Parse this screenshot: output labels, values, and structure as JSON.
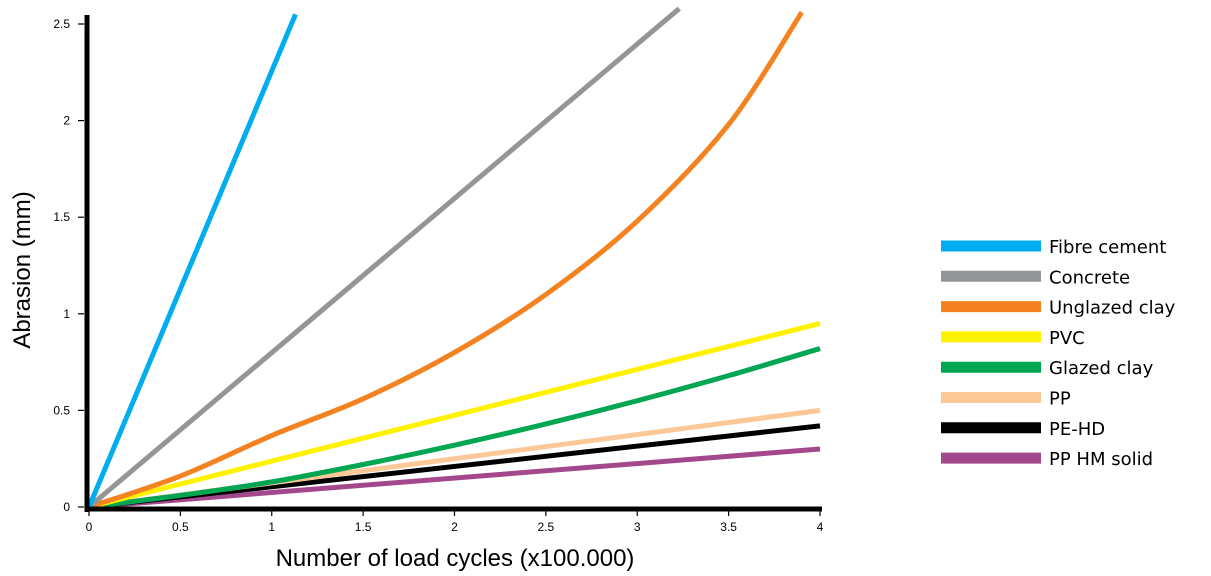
{
  "chart_data": {
    "type": "line",
    "title": "",
    "xlabel": "Number of load cycles (x100.000)",
    "ylabel": "Abrasion (mm)",
    "xlim": [
      0,
      4
    ],
    "ylim": [
      0,
      2.5
    ],
    "x_ticks": [
      "0",
      "0.5",
      "1",
      "1.5",
      "2",
      "2.5",
      "3",
      "3.5",
      "4"
    ],
    "y_ticks": [
      "0",
      "0.5",
      "1",
      "1.5",
      "2",
      "2.5"
    ],
    "grid": false,
    "legend_position": "right",
    "series": [
      {
        "name": "Fibre cement",
        "color": "#00aeef",
        "x": [
          0,
          1.13
        ],
        "y": [
          0,
          2.55
        ]
      },
      {
        "name": "Concrete",
        "color": "#939598",
        "x": [
          0,
          3.23
        ],
        "y": [
          0,
          2.58
        ]
      },
      {
        "name": "Unglazed clay",
        "color": "#f58220",
        "x": [
          0,
          0.5,
          1,
          1.5,
          2,
          2.5,
          3,
          3.5,
          3.9
        ],
        "y": [
          0,
          0.16,
          0.37,
          0.56,
          0.8,
          1.1,
          1.48,
          1.98,
          2.56
        ]
      },
      {
        "name": "PVC",
        "color": "#fff200",
        "x": [
          0,
          4
        ],
        "y": [
          0,
          0.95
        ]
      },
      {
        "name": "Glazed clay",
        "color": "#00a651",
        "x": [
          0,
          0.5,
          1,
          1.5,
          2,
          2.5,
          3,
          3.5,
          4
        ],
        "y": [
          0,
          0.06,
          0.13,
          0.22,
          0.32,
          0.43,
          0.55,
          0.68,
          0.82
        ]
      },
      {
        "name": "PP",
        "color": "#fdc897",
        "x": [
          0,
          4
        ],
        "y": [
          0,
          0.5
        ]
      },
      {
        "name": "PE-HD",
        "color": "#000000",
        "x": [
          0,
          4
        ],
        "y": [
          0,
          0.42
        ]
      },
      {
        "name": "PP HM solid",
        "color": "#a3488c",
        "x": [
          0,
          4
        ],
        "y": [
          0,
          0.3
        ]
      }
    ]
  }
}
